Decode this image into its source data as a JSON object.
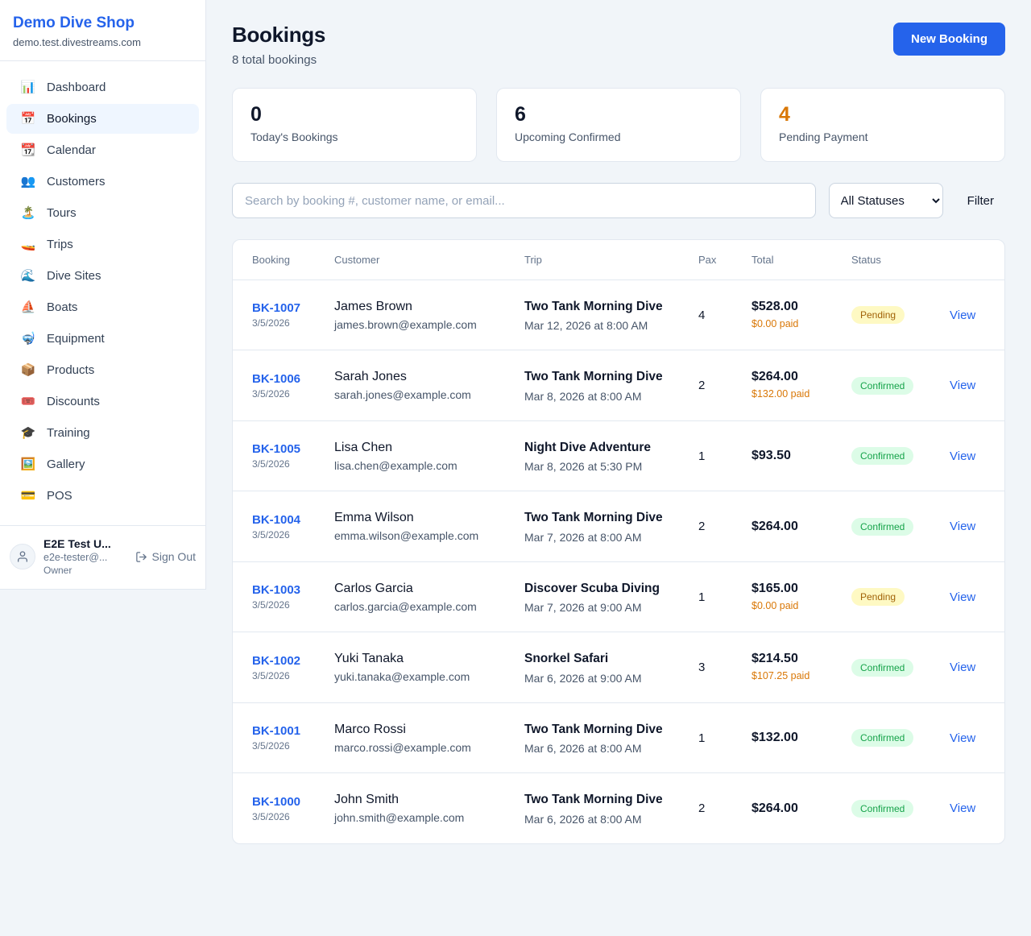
{
  "colors": {
    "accent": "#2563eb",
    "pending_bg": "#fef9c3",
    "pending_text": "#a16207",
    "confirmed_bg": "#dcfce7",
    "confirmed_text": "#16a34a",
    "warning_text": "#d97706"
  },
  "sidebar": {
    "shop_name": "Demo Dive Shop",
    "shop_domain": "demo.test.divestreams.com",
    "items": [
      {
        "label": "Dashboard",
        "icon_name": "dashboard-icon",
        "icon": "📊",
        "active": false
      },
      {
        "label": "Bookings",
        "icon_name": "bookings-icon",
        "icon": "📅",
        "active": true
      },
      {
        "label": "Calendar",
        "icon_name": "calendar-icon",
        "icon": "📆",
        "active": false
      },
      {
        "label": "Customers",
        "icon_name": "customers-icon",
        "icon": "👥",
        "active": false
      },
      {
        "label": "Tours",
        "icon_name": "tours-icon",
        "icon": "🏝️",
        "active": false
      },
      {
        "label": "Trips",
        "icon_name": "trips-icon",
        "icon": "🚤",
        "active": false
      },
      {
        "label": "Dive Sites",
        "icon_name": "dive-sites-icon",
        "icon": "🌊",
        "active": false
      },
      {
        "label": "Boats",
        "icon_name": "boats-icon",
        "icon": "⛵",
        "active": false
      },
      {
        "label": "Equipment",
        "icon_name": "equipment-icon",
        "icon": "🤿",
        "active": false
      },
      {
        "label": "Products",
        "icon_name": "products-icon",
        "icon": "📦",
        "active": false
      },
      {
        "label": "Discounts",
        "icon_name": "discounts-icon",
        "icon": "🎟️",
        "active": false
      },
      {
        "label": "Training",
        "icon_name": "training-icon",
        "icon": "🎓",
        "active": false
      },
      {
        "label": "Gallery",
        "icon_name": "gallery-icon",
        "icon": "🖼️",
        "active": false
      },
      {
        "label": "POS",
        "icon_name": "pos-icon",
        "icon": "💳",
        "active": false
      }
    ],
    "user": {
      "name": "E2E Test U...",
      "email": "e2e-tester@...",
      "role": "Owner",
      "sign_out_label": "Sign Out"
    }
  },
  "header": {
    "title": "Bookings",
    "subtitle": "8 total bookings",
    "new_booking_label": "New Booking"
  },
  "stats": [
    {
      "value": "0",
      "label": "Today's Bookings",
      "highlight": false
    },
    {
      "value": "6",
      "label": "Upcoming Confirmed",
      "highlight": false
    },
    {
      "value": "4",
      "label": "Pending Payment",
      "highlight": true
    }
  ],
  "filters": {
    "search_placeholder": "Search by booking #, customer name, or email...",
    "status_selected": "All Statuses",
    "filter_label": "Filter"
  },
  "table": {
    "columns": [
      "Booking",
      "Customer",
      "Trip",
      "Pax",
      "Total",
      "Status"
    ],
    "rows": [
      {
        "booking_id": "BK-1007",
        "booking_date": "3/5/2026",
        "customer_name": "James Brown",
        "customer_email": "james.brown@example.com",
        "trip_name": "Two Tank Morning Dive",
        "trip_datetime": "Mar 12, 2026 at 8:00 AM",
        "pax": "4",
        "total": "$528.00",
        "paid": "$0.00 paid",
        "status": "Pending",
        "view_label": "View"
      },
      {
        "booking_id": "BK-1006",
        "booking_date": "3/5/2026",
        "customer_name": "Sarah Jones",
        "customer_email": "sarah.jones@example.com",
        "trip_name": "Two Tank Morning Dive",
        "trip_datetime": "Mar 8, 2026 at 8:00 AM",
        "pax": "2",
        "total": "$264.00",
        "paid": "$132.00 paid",
        "status": "Confirmed",
        "view_label": "View"
      },
      {
        "booking_id": "BK-1005",
        "booking_date": "3/5/2026",
        "customer_name": "Lisa Chen",
        "customer_email": "lisa.chen@example.com",
        "trip_name": "Night Dive Adventure",
        "trip_datetime": "Mar 8, 2026 at 5:30 PM",
        "pax": "1",
        "total": "$93.50",
        "paid": "",
        "status": "Confirmed",
        "view_label": "View"
      },
      {
        "booking_id": "BK-1004",
        "booking_date": "3/5/2026",
        "customer_name": "Emma Wilson",
        "customer_email": "emma.wilson@example.com",
        "trip_name": "Two Tank Morning Dive",
        "trip_datetime": "Mar 7, 2026 at 8:00 AM",
        "pax": "2",
        "total": "$264.00",
        "paid": "",
        "status": "Confirmed",
        "view_label": "View"
      },
      {
        "booking_id": "BK-1003",
        "booking_date": "3/5/2026",
        "customer_name": "Carlos Garcia",
        "customer_email": "carlos.garcia@example.com",
        "trip_name": "Discover Scuba Diving",
        "trip_datetime": "Mar 7, 2026 at 9:00 AM",
        "pax": "1",
        "total": "$165.00",
        "paid": "$0.00 paid",
        "status": "Pending",
        "view_label": "View"
      },
      {
        "booking_id": "BK-1002",
        "booking_date": "3/5/2026",
        "customer_name": "Yuki Tanaka",
        "customer_email": "yuki.tanaka@example.com",
        "trip_name": "Snorkel Safari",
        "trip_datetime": "Mar 6, 2026 at 9:00 AM",
        "pax": "3",
        "total": "$214.50",
        "paid": "$107.25 paid",
        "status": "Confirmed",
        "view_label": "View"
      },
      {
        "booking_id": "BK-1001",
        "booking_date": "3/5/2026",
        "customer_name": "Marco Rossi",
        "customer_email": "marco.rossi@example.com",
        "trip_name": "Two Tank Morning Dive",
        "trip_datetime": "Mar 6, 2026 at 8:00 AM",
        "pax": "1",
        "total": "$132.00",
        "paid": "",
        "status": "Confirmed",
        "view_label": "View"
      },
      {
        "booking_id": "BK-1000",
        "booking_date": "3/5/2026",
        "customer_name": "John Smith",
        "customer_email": "john.smith@example.com",
        "trip_name": "Two Tank Morning Dive",
        "trip_datetime": "Mar 6, 2026 at 8:00 AM",
        "pax": "2",
        "total": "$264.00",
        "paid": "",
        "status": "Confirmed",
        "view_label": "View"
      }
    ]
  }
}
